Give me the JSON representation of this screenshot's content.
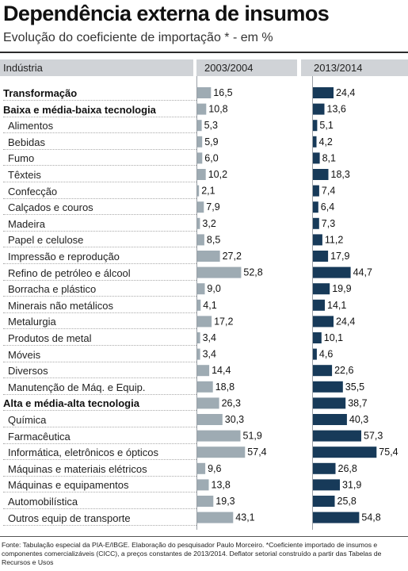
{
  "title": "Dependência externa de insumos",
  "subtitle": "Evolução do coeficiente de importação * - em %",
  "header": {
    "industry": "Indústria",
    "period1": "2003/2004",
    "period2": "2013/2014"
  },
  "colors": {
    "period1_bar": "#9eabb3",
    "period2_bar": "#173a59",
    "header_bg": "#d0d3d7"
  },
  "chart_data": {
    "type": "bar",
    "orientation": "horizontal",
    "categories": [
      "Transformação",
      "Baixa e média-baixa tecnologia",
      "Alimentos",
      "Bebidas",
      "Fumo",
      "Têxteis",
      "Confecção",
      "Calçados e couros",
      "Madeira",
      "Papel e celulose",
      "Impressão e reprodução",
      "Refino de petróleo e álcool",
      "Borracha e plástico",
      "Minerais não metálicos",
      "Metalurgia",
      "Produtos de metal",
      "Móveis",
      "Diversos",
      "Manutenção de Máq. e Equip.",
      "Alta e média-alta tecnologia",
      "Química",
      "Farmacêutica",
      "Informática, eletrônicos e ópticos",
      "Máquinas e materiais elétricos",
      "Máquinas e equipamentos",
      "Automobilística",
      "Outros equip de transporte"
    ],
    "bold": [
      true,
      true,
      false,
      false,
      false,
      false,
      false,
      false,
      false,
      false,
      false,
      false,
      false,
      false,
      false,
      false,
      false,
      false,
      false,
      true,
      false,
      false,
      false,
      false,
      false,
      false,
      false
    ],
    "series": [
      {
        "name": "2003/2004",
        "values": [
          "16,5",
          "10,8",
          "5,3",
          "5,9",
          "6,0",
          "10,2",
          "2,1",
          "7,9",
          "3,2",
          "8,5",
          "27,2",
          "52,8",
          "9,0",
          "4,1",
          "17,2",
          "3,4",
          "3,4",
          "14,4",
          "18,8",
          "26,3",
          "30,3",
          "51,9",
          "57,4",
          "9,6",
          "13,8",
          "19,3",
          "43,1"
        ]
      },
      {
        "name": "2013/2014",
        "values": [
          "24,4",
          "13,6",
          "5,1",
          "4,2",
          "8,1",
          "18,3",
          "7,4",
          "6,4",
          "7,3",
          "11,2",
          "17,9",
          "44,7",
          "19,9",
          "14,1",
          "24,4",
          "10,1",
          "4,6",
          "22,6",
          "35,5",
          "38,7",
          "40,3",
          "57,3",
          "75,4",
          "26,8",
          "31,9",
          "25,8",
          "54,8"
        ]
      }
    ]
  },
  "source": "Fonte: Tabulação especial da PIA-E/IBGE. Elaboração do pesquisador Paulo Morceiro. *Coeficiente importado de insumos e componentes comercializáveis (CICC), a preços constantes de 2013/2014. Deflator setorial construído a partir das Tabelas de Recursos e Usos"
}
